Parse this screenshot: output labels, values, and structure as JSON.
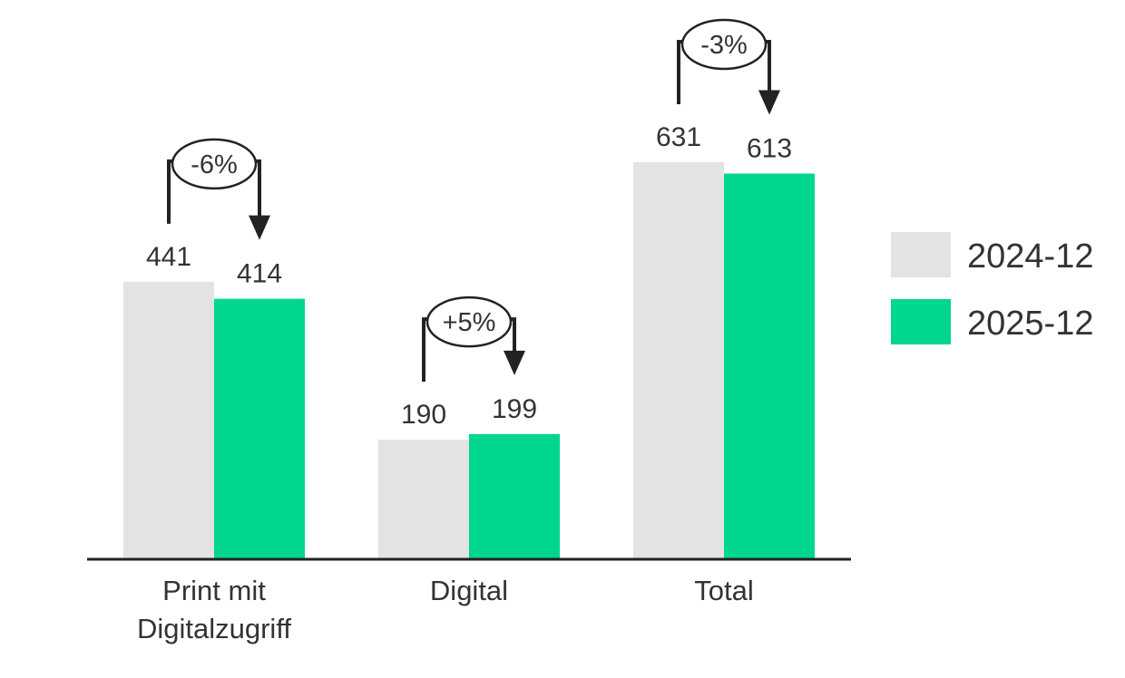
{
  "chart_data": {
    "type": "bar",
    "categories": [
      "Print mit Digitalzugriff",
      "Digital",
      "Total"
    ],
    "series": [
      {
        "name": "2024-12",
        "color": "#e3e3e3",
        "values": [
          441,
          190,
          631
        ]
      },
      {
        "name": "2025-12",
        "color": "#00d68f",
        "values": [
          414,
          199,
          613
        ]
      }
    ],
    "annotations": [
      "-6%",
      "+5%",
      "-3%"
    ],
    "legend": "right"
  }
}
